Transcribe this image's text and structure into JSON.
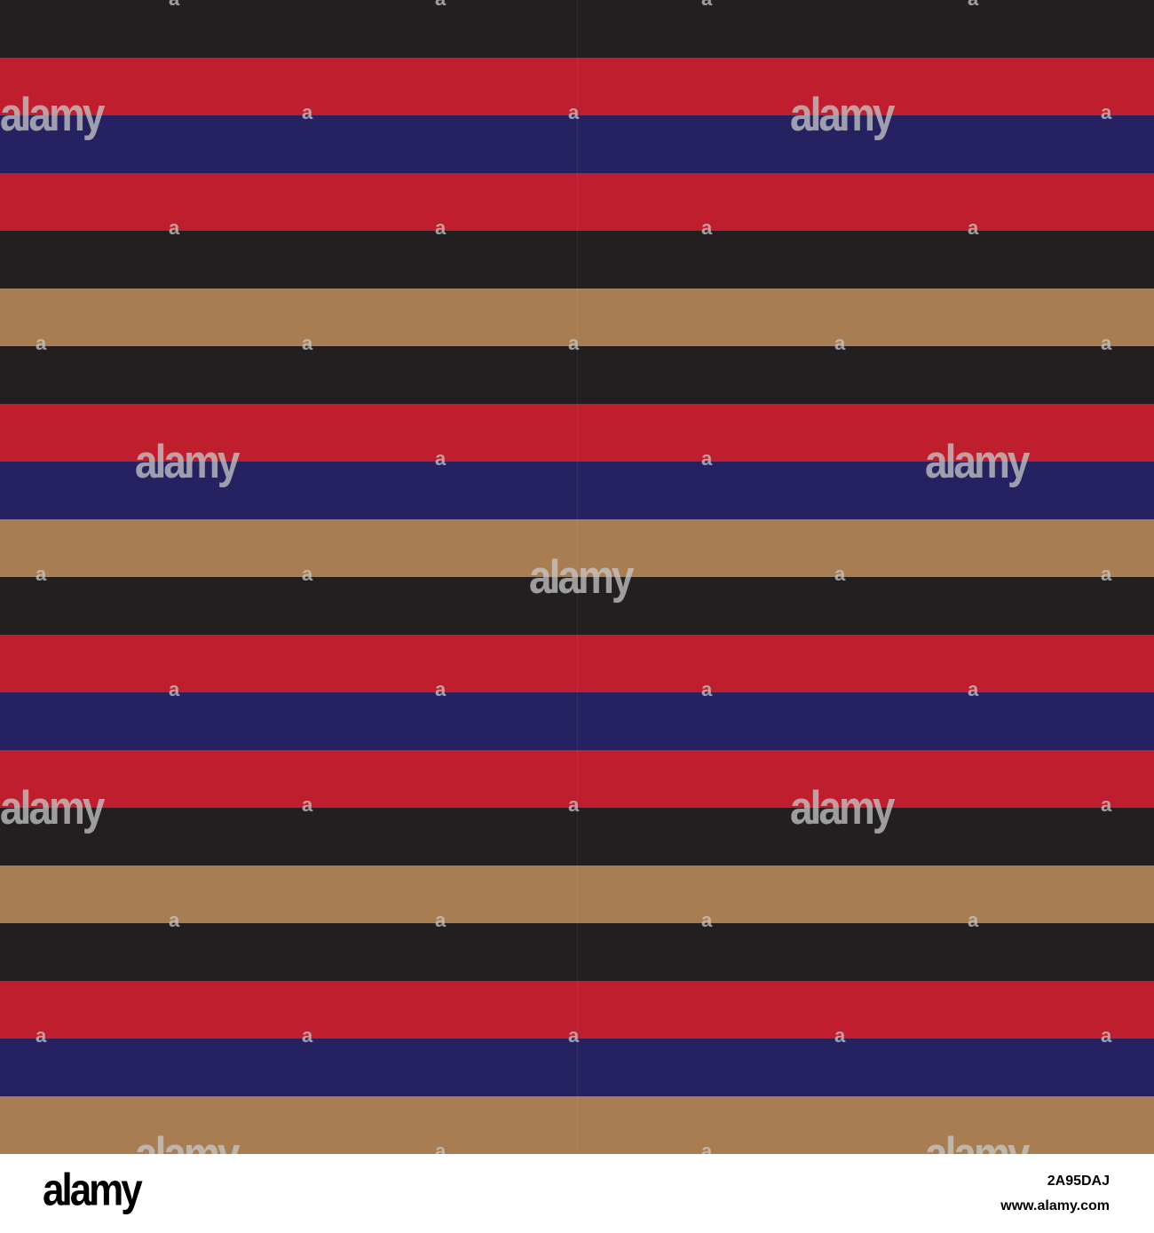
{
  "colors": {
    "black": "#231f20",
    "red": "#be1e2d",
    "navy": "#262262",
    "tan": "#a87d51",
    "footer_bg": "#ffffff",
    "footer_text": "#000000"
  },
  "stripes": [
    "black",
    "red",
    "navy",
    "red",
    "black",
    "tan",
    "black",
    "red",
    "navy",
    "tan",
    "black",
    "red",
    "navy",
    "red",
    "black",
    "tan",
    "black",
    "red",
    "navy",
    "tan"
  ],
  "watermark": {
    "logo_text": "alamy",
    "small_mark": "a"
  },
  "footer": {
    "logo": "alamy",
    "image_id": "2A95DAJ",
    "url": "www.alamy.com"
  }
}
